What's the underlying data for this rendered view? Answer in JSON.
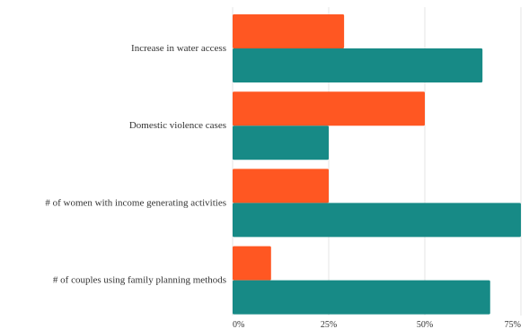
{
  "chart_data": {
    "type": "bar",
    "orientation": "horizontal",
    "categories": [
      "Increase in water access",
      "Domestic violence cases",
      "# of women with income generating activities",
      "# of couples using family planning methods"
    ],
    "series": [
      {
        "values": [
          29,
          50,
          25,
          10
        ],
        "color": "#ff5722"
      },
      {
        "values": [
          65,
          25,
          75,
          67
        ],
        "color": "#178a86"
      }
    ],
    "x_ticks": [
      {
        "value": 0,
        "label": "0%"
      },
      {
        "value": 25,
        "label": "25%"
      },
      {
        "value": 50,
        "label": "50%"
      },
      {
        "value": 75,
        "label": "75%"
      }
    ],
    "xlim": [
      0,
      75
    ],
    "grid": "vertical",
    "legend": "none"
  }
}
